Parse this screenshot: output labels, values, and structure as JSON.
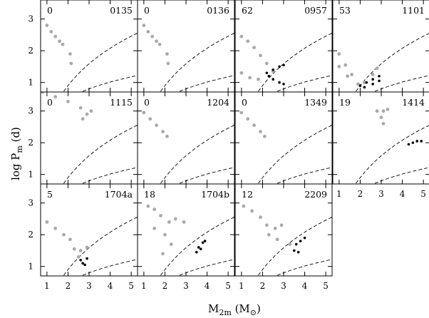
{
  "figure": {
    "ylabel_main": "log P",
    "ylabel_sub": "m",
    "ylabel_unit": " (d)",
    "xlabel_main": "M",
    "xlabel_sub": "2m",
    "xlabel_unit": " (M",
    "xlabel_unit_sub": "⊙",
    "xlabel_close": ")"
  },
  "colors": {
    "grey": "#aaaaaa",
    "black": "#000000",
    "frame": "#000000",
    "dash": "#000000"
  },
  "chart_data": [
    {
      "type": "scatter",
      "count": "0",
      "label": "0135",
      "xlim": [
        0.7,
        5.3
      ],
      "ylim": [
        0.7,
        3.6
      ],
      "xticks": [
        1,
        2,
        3,
        4,
        5
      ],
      "yticks": [
        1,
        2,
        3
      ],
      "show_xticklabels": false,
      "show_yticklabels": true,
      "grey_points": [
        [
          1.0,
          2.8
        ],
        [
          1.2,
          2.6
        ],
        [
          1.4,
          2.45
        ],
        [
          1.6,
          2.3
        ],
        [
          1.75,
          2.2
        ],
        [
          2.1,
          1.9
        ],
        [
          2.15,
          1.6
        ]
      ],
      "black_points": []
    },
    {
      "type": "scatter",
      "count": "0",
      "label": "0136",
      "xlim": [
        0.7,
        5.3
      ],
      "ylim": [
        0.7,
        3.6
      ],
      "xticks": [
        1,
        2,
        3,
        4,
        5
      ],
      "yticks": [
        1,
        2,
        3
      ],
      "show_xticklabels": false,
      "show_yticklabels": false,
      "grey_points": [
        [
          1.0,
          2.8
        ],
        [
          1.2,
          2.6
        ],
        [
          1.4,
          2.45
        ],
        [
          1.6,
          2.3
        ],
        [
          1.75,
          2.2
        ],
        [
          2.1,
          1.9
        ],
        [
          2.15,
          1.6
        ]
      ],
      "black_points": []
    },
    {
      "type": "scatter",
      "count": "62",
      "label": "0957",
      "xlim": [
        0.7,
        5.3
      ],
      "ylim": [
        0.7,
        3.6
      ],
      "xticks": [
        1,
        2,
        3,
        4,
        5
      ],
      "yticks": [
        1,
        2,
        3
      ],
      "show_xticklabels": false,
      "show_yticklabels": false,
      "grey_points": [
        [
          1.0,
          2.45
        ],
        [
          1.3,
          2.3
        ],
        [
          1.6,
          2.1
        ],
        [
          1.9,
          1.85
        ],
        [
          2.2,
          1.6
        ],
        [
          2.5,
          1.35
        ],
        [
          1.0,
          1.3
        ],
        [
          1.4,
          1.15
        ],
        [
          1.8,
          1.1
        ]
      ],
      "black_points": [
        [
          2.2,
          1.3
        ],
        [
          2.5,
          1.4
        ],
        [
          2.8,
          1.5
        ],
        [
          3.0,
          1.55
        ],
        [
          2.5,
          1.1
        ],
        [
          2.8,
          1.0
        ],
        [
          3.0,
          0.95
        ],
        [
          2.3,
          1.2
        ]
      ]
    },
    {
      "type": "scatter",
      "count": "53",
      "label": "1101",
      "xlim": [
        0.7,
        5.3
      ],
      "ylim": [
        0.7,
        3.6
      ],
      "xticks": [
        1,
        2,
        3,
        4,
        5
      ],
      "yticks": [
        1,
        2,
        3
      ],
      "show_xticklabels": false,
      "show_yticklabels": false,
      "grey_points": [
        [
          1.0,
          1.9
        ],
        [
          1.3,
          1.55
        ],
        [
          1.6,
          1.25
        ],
        [
          1.9,
          0.95
        ],
        [
          2.2,
          1.0
        ],
        [
          2.6,
          1.25
        ],
        [
          2.8,
          1.45
        ],
        [
          1.0,
          1.5
        ],
        [
          1.4,
          1.2
        ]
      ],
      "black_points": [
        [
          2.0,
          0.9
        ],
        [
          2.3,
          1.0
        ],
        [
          2.6,
          1.1
        ],
        [
          2.9,
          1.2
        ],
        [
          2.2,
          0.85
        ],
        [
          2.6,
          0.95
        ],
        [
          2.9,
          1.05
        ]
      ]
    },
    {
      "type": "scatter",
      "count": "0",
      "label": "1115",
      "xlim": [
        0.7,
        5.3
      ],
      "ylim": [
        0.7,
        3.6
      ],
      "xticks": [
        1,
        2,
        3,
        4,
        5
      ],
      "yticks": [
        1,
        2,
        3
      ],
      "show_xticklabels": false,
      "show_yticklabels": true,
      "grey_points": [
        [
          0.8,
          3.6
        ],
        [
          1.4,
          3.45
        ],
        [
          2.0,
          3.3
        ],
        [
          2.6,
          3.1
        ],
        [
          3.1,
          3.0
        ],
        [
          2.7,
          2.75
        ],
        [
          2.9,
          2.9
        ]
      ],
      "black_points": []
    },
    {
      "type": "scatter",
      "count": "0",
      "label": "1204",
      "xlim": [
        0.7,
        5.3
      ],
      "ylim": [
        0.7,
        3.6
      ],
      "xticks": [
        1,
        2,
        3,
        4,
        5
      ],
      "yticks": [
        1,
        2,
        3
      ],
      "show_xticklabels": false,
      "show_yticklabels": false,
      "grey_points": [
        [
          1.0,
          2.95
        ],
        [
          1.3,
          2.75
        ],
        [
          1.6,
          2.55
        ],
        [
          1.9,
          2.35
        ],
        [
          2.1,
          2.2
        ]
      ],
      "black_points": []
    },
    {
      "type": "scatter",
      "count": "0",
      "label": "1349",
      "xlim": [
        0.7,
        5.3
      ],
      "ylim": [
        0.7,
        3.6
      ],
      "xticks": [
        1,
        2,
        3,
        4,
        5
      ],
      "yticks": [
        1,
        2,
        3
      ],
      "show_xticklabels": false,
      "show_yticklabels": false,
      "grey_points": [
        [
          1.0,
          2.95
        ],
        [
          1.3,
          2.75
        ],
        [
          1.6,
          2.55
        ],
        [
          1.9,
          2.35
        ],
        [
          2.1,
          2.2
        ]
      ],
      "black_points": []
    },
    {
      "type": "scatter",
      "count": "19",
      "label": "1414",
      "xlim": [
        0.7,
        5.3
      ],
      "ylim": [
        0.7,
        3.6
      ],
      "xticks": [
        1,
        2,
        3,
        4,
        5
      ],
      "yticks": [
        1,
        2,
        3
      ],
      "show_xticklabels": true,
      "show_yticklabels": false,
      "grey_points": [
        [
          2.8,
          3.0
        ],
        [
          3.1,
          3.0
        ],
        [
          3.3,
          3.05
        ],
        [
          3.0,
          2.8
        ],
        [
          3.1,
          2.6
        ]
      ],
      "black_points": [
        [
          4.3,
          1.95
        ],
        [
          4.5,
          2.0
        ],
        [
          4.7,
          2.05
        ],
        [
          4.9,
          2.05
        ]
      ]
    },
    {
      "type": "scatter",
      "count": "5",
      "label": "1704a",
      "xlim": [
        0.7,
        5.3
      ],
      "ylim": [
        0.7,
        3.6
      ],
      "xticks": [
        1,
        2,
        3,
        4,
        5
      ],
      "yticks": [
        1,
        2,
        3
      ],
      "show_xticklabels": true,
      "show_yticklabels": true,
      "grey_points": [
        [
          1.0,
          2.4
        ],
        [
          1.4,
          2.2
        ],
        [
          1.8,
          2.0
        ],
        [
          2.1,
          1.85
        ],
        [
          2.3,
          1.55
        ],
        [
          2.6,
          1.5
        ],
        [
          2.9,
          1.6
        ],
        [
          2.5,
          1.3
        ]
      ],
      "black_points": [
        [
          2.6,
          1.2
        ],
        [
          2.7,
          1.1
        ],
        [
          2.8,
          1.05
        ],
        [
          2.9,
          1.25
        ]
      ]
    },
    {
      "type": "scatter",
      "count": "18",
      "label": "1704b",
      "xlim": [
        0.7,
        5.3
      ],
      "ylim": [
        0.7,
        3.6
      ],
      "xticks": [
        1,
        2,
        3,
        4,
        5
      ],
      "yticks": [
        1,
        2,
        3
      ],
      "show_xticklabels": true,
      "show_yticklabels": false,
      "grey_points": [
        [
          1.2,
          2.9
        ],
        [
          1.5,
          2.8
        ],
        [
          1.8,
          2.6
        ],
        [
          2.2,
          2.4
        ],
        [
          2.5,
          2.5
        ],
        [
          2.9,
          2.4
        ],
        [
          1.5,
          2.2
        ],
        [
          2.0,
          2.0
        ],
        [
          2.3,
          1.7
        ],
        [
          1.9,
          1.4
        ]
      ],
      "black_points": [
        [
          3.6,
          1.6
        ],
        [
          3.8,
          1.75
        ],
        [
          3.9,
          1.8
        ],
        [
          3.5,
          1.45
        ],
        [
          3.7,
          1.55
        ]
      ]
    },
    {
      "type": "scatter",
      "count": "12",
      "label": "2209",
      "xlim": [
        0.7,
        5.3
      ],
      "ylim": [
        0.7,
        3.6
      ],
      "xticks": [
        1,
        2,
        3,
        4,
        5
      ],
      "yticks": [
        1,
        2,
        3
      ],
      "show_xticklabels": true,
      "show_yticklabels": false,
      "grey_points": [
        [
          1.1,
          2.9
        ],
        [
          1.5,
          2.75
        ],
        [
          1.9,
          2.55
        ],
        [
          2.2,
          2.3
        ],
        [
          2.6,
          2.2
        ],
        [
          2.9,
          2.3
        ],
        [
          2.3,
          2.0
        ],
        [
          2.7,
          1.85
        ],
        [
          3.3,
          1.7
        ]
      ],
      "black_points": [
        [
          3.6,
          1.7
        ],
        [
          3.8,
          1.8
        ],
        [
          4.0,
          1.9
        ],
        [
          3.5,
          1.5
        ],
        [
          3.7,
          1.45
        ]
      ]
    }
  ]
}
